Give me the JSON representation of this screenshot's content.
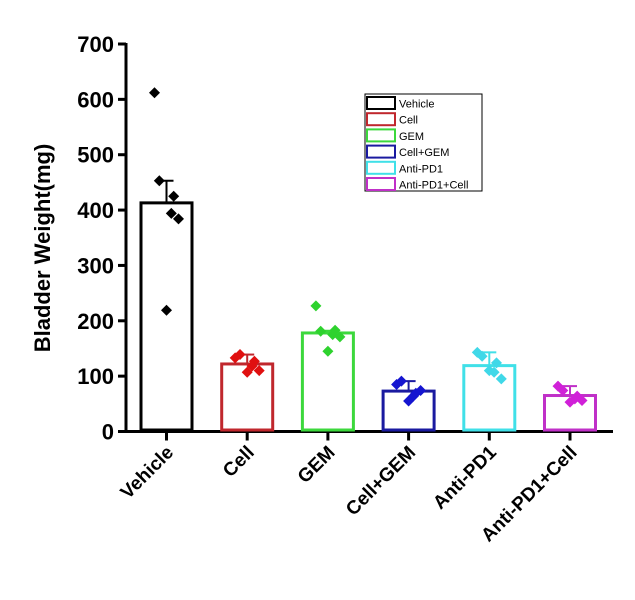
{
  "chart_data": {
    "type": "bar",
    "title": "",
    "xlabel": "",
    "ylabel": "Bladder Weight(mg)",
    "ylim": [
      0,
      700
    ],
    "yticks": [
      0,
      100,
      200,
      300,
      400,
      500,
      600,
      700
    ],
    "ytick_labels": [
      "0",
      "100",
      "200",
      "300",
      "400",
      "500",
      "600",
      "700"
    ],
    "grid": false,
    "legend_position": "top-right",
    "categories": [
      "Vehicle",
      "Cell",
      "GEM",
      "Cell+GEM",
      "Anti-PD1",
      "Anti-PD1+Cell"
    ],
    "series": [
      {
        "name": "Vehicle",
        "color": "#000000",
        "mean": 413,
        "error_top": 453,
        "points": [
          612,
          453,
          425,
          394,
          384,
          219
        ]
      },
      {
        "name": "Cell",
        "color": "#c0272d",
        "point_color": "#e01010",
        "mean": 122,
        "error_top": 139,
        "points": [
          133,
          139,
          127,
          118,
          110,
          107
        ]
      },
      {
        "name": "GEM",
        "color": "#3cd83c",
        "point_color": "#2ed22e",
        "mean": 178,
        "error_top": 182,
        "points": [
          227,
          181,
          183,
          175,
          171,
          145
        ]
      },
      {
        "name": "Cell+GEM",
        "color": "#1a1aa0",
        "point_color": "#1515d0",
        "mean": 73,
        "error_top": 91,
        "points": [
          85,
          91,
          69,
          64,
          74,
          55
        ]
      },
      {
        "name": "Anti-PD1",
        "color": "#40e0e8",
        "point_color": "#40d8e8",
        "mean": 119,
        "error_top": 143,
        "points": [
          143,
          136,
          124,
          107,
          95,
          110
        ]
      },
      {
        "name": "Anti-PD1+Cell",
        "color": "#c030c8",
        "point_color": "#d020d8",
        "mean": 65,
        "error_top": 82,
        "points": [
          82,
          74,
          64,
          59,
          56,
          53
        ]
      }
    ]
  }
}
